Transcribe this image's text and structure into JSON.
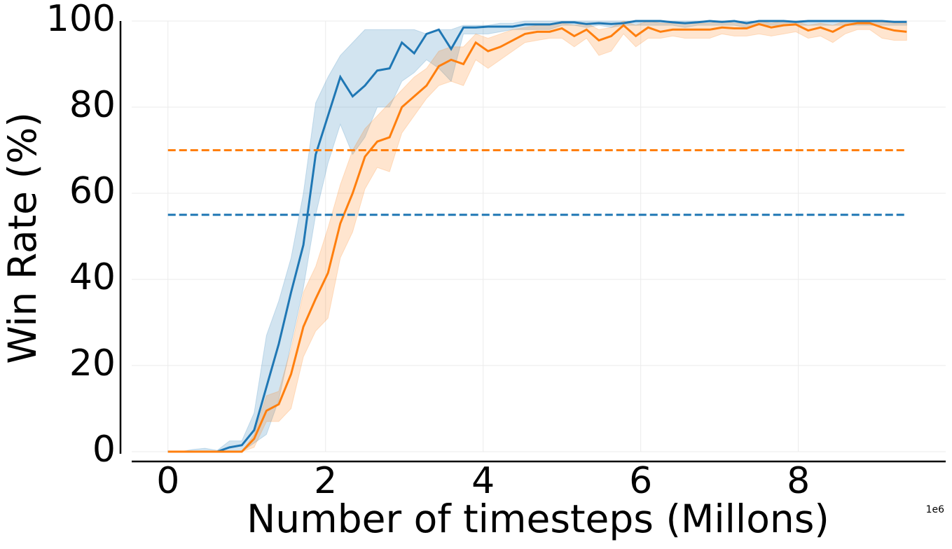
{
  "chart_data": {
    "type": "line",
    "xlabel": "Number of timesteps (Millons)",
    "ylabel": "Win Rate (%)",
    "x_offset_label": "1e6",
    "x": [
      0,
      156250,
      312500,
      468750,
      625000,
      781250,
      937500,
      1093750,
      1250000,
      1406250,
      1562500,
      1718750,
      1875000,
      2031250,
      2187500,
      2343750,
      2500000,
      2656250,
      2812500,
      2968750,
      3125000,
      3281250,
      3437500,
      3593750,
      3750000,
      3906250,
      4062500,
      4218750,
      4375000,
      4531250,
      4687500,
      4843750,
      5000000,
      5156250,
      5312500,
      5468750,
      5625000,
      5781250,
      5937500,
      6093750,
      6250000,
      6406250,
      6562500,
      6718750,
      6875000,
      7031250,
      7187500,
      7343750,
      7500000,
      7656250,
      7812500,
      7968750,
      8125000,
      8281250,
      8437500,
      8593750,
      8750000,
      8906250,
      9062500,
      9218750,
      9375000
    ],
    "series": [
      {
        "color": "#1f77b4",
        "values": [
          0,
          0,
          0,
          0,
          0,
          1,
          1.5,
          5,
          15,
          25,
          37,
          48,
          69,
          78,
          87,
          82.5,
          85,
          88.5,
          89,
          95,
          92.5,
          97,
          98,
          93.5,
          98.5,
          98.5,
          98.7,
          98.7,
          98.7,
          99.2,
          99.2,
          99.2,
          99.7,
          99.7,
          99.3,
          99.5,
          99.3,
          99.5,
          100,
          100,
          100,
          99.7,
          99.5,
          99.7,
          100,
          99.8,
          100,
          99.5,
          100,
          100,
          100,
          99.8,
          100,
          100,
          100,
          100,
          100,
          100,
          100,
          99.8,
          99.8
        ],
        "upper": [
          0,
          0,
          0.5,
          0.8,
          0.3,
          2.5,
          2.5,
          9,
          27,
          35,
          45,
          60,
          81,
          87,
          92,
          95,
          98,
          98,
          98,
          98,
          98,
          97,
          98,
          98,
          99,
          99,
          99,
          99.5,
          99.5,
          100,
          100,
          100,
          100,
          100,
          100,
          100,
          100,
          100,
          100,
          100,
          100,
          100,
          100,
          100,
          100,
          100,
          100,
          100,
          100,
          100,
          100,
          100,
          100,
          100,
          100,
          100,
          100,
          100,
          100,
          100,
          100
        ],
        "lower": [
          0,
          0,
          0,
          0,
          0,
          0,
          0,
          2,
          4,
          12,
          25,
          38,
          55,
          67,
          76,
          69,
          73,
          80,
          80,
          86,
          88,
          91,
          89,
          86,
          97,
          97,
          97,
          97.5,
          98,
          98,
          98,
          98,
          99,
          99,
          98.5,
          99,
          98.5,
          99,
          99,
          99,
          99,
          99,
          98.5,
          99,
          99,
          99,
          99,
          98.5,
          99,
          99,
          99,
          99,
          99,
          99,
          99,
          99,
          99,
          99,
          99,
          99,
          99
        ]
      },
      {
        "color": "#ff7f0e",
        "values": [
          0,
          0,
          0,
          0,
          0,
          0,
          0,
          3,
          9.5,
          11,
          18,
          29,
          35.5,
          41.5,
          53,
          60,
          68.5,
          72,
          73,
          80,
          82.5,
          85,
          89.5,
          91,
          90,
          95,
          93,
          94,
          95.5,
          97,
          97.5,
          97.5,
          98.3,
          96.5,
          98,
          95.5,
          96.5,
          99,
          96.5,
          98.5,
          97.5,
          98,
          98,
          98,
          98,
          98.5,
          98.3,
          98.3,
          99.3,
          98.5,
          99,
          99.2,
          97.8,
          98.5,
          97.5,
          99,
          99.5,
          99.5,
          98.5,
          97.8,
          97.5
        ],
        "upper": [
          0,
          0,
          0,
          0,
          0,
          0,
          0,
          4,
          13,
          14,
          24,
          37,
          43,
          52,
          62,
          70,
          75,
          78,
          81,
          84,
          87,
          89,
          93,
          94,
          94,
          97,
          96,
          97,
          98,
          98.5,
          99,
          99,
          99.5,
          99,
          99.5,
          98,
          98.5,
          100,
          99,
          100,
          99.5,
          99.5,
          99.5,
          99.5,
          99.5,
          100,
          99.5,
          99.5,
          100,
          99.5,
          100,
          100,
          99,
          99.5,
          99,
          100,
          100,
          100,
          99.8,
          99.5,
          99.5
        ],
        "lower": [
          0,
          0,
          0,
          0,
          0,
          0,
          0,
          1,
          7,
          7,
          10,
          22,
          28,
          31,
          45,
          51,
          61,
          66,
          65,
          74,
          78,
          82,
          85,
          86,
          85,
          91,
          89,
          91,
          93,
          95,
          95.5,
          96,
          96,
          94,
          96,
          92,
          93,
          97,
          94,
          96,
          96,
          96.5,
          96,
          96,
          96,
          97,
          96.5,
          96.5,
          97,
          96.5,
          97,
          97.5,
          96,
          96.5,
          95,
          97,
          98,
          98,
          96,
          95.5,
          95.5
        ]
      }
    ],
    "hlines": [
      {
        "value": 70,
        "color": "#ff7f0e"
      },
      {
        "value": 55,
        "color": "#1f77b4"
      }
    ],
    "xlim": [
      -460000,
      9870000
    ],
    "ylim": [
      0,
      100
    ],
    "xticks": [
      {
        "value": 0,
        "label": "0"
      },
      {
        "value": 2000000,
        "label": "2"
      },
      {
        "value": 4000000,
        "label": "4"
      },
      {
        "value": 6000000,
        "label": "6"
      },
      {
        "value": 8000000,
        "label": "8"
      }
    ],
    "yticks": [
      0,
      20,
      40,
      60,
      80,
      100
    ],
    "grid": true
  }
}
